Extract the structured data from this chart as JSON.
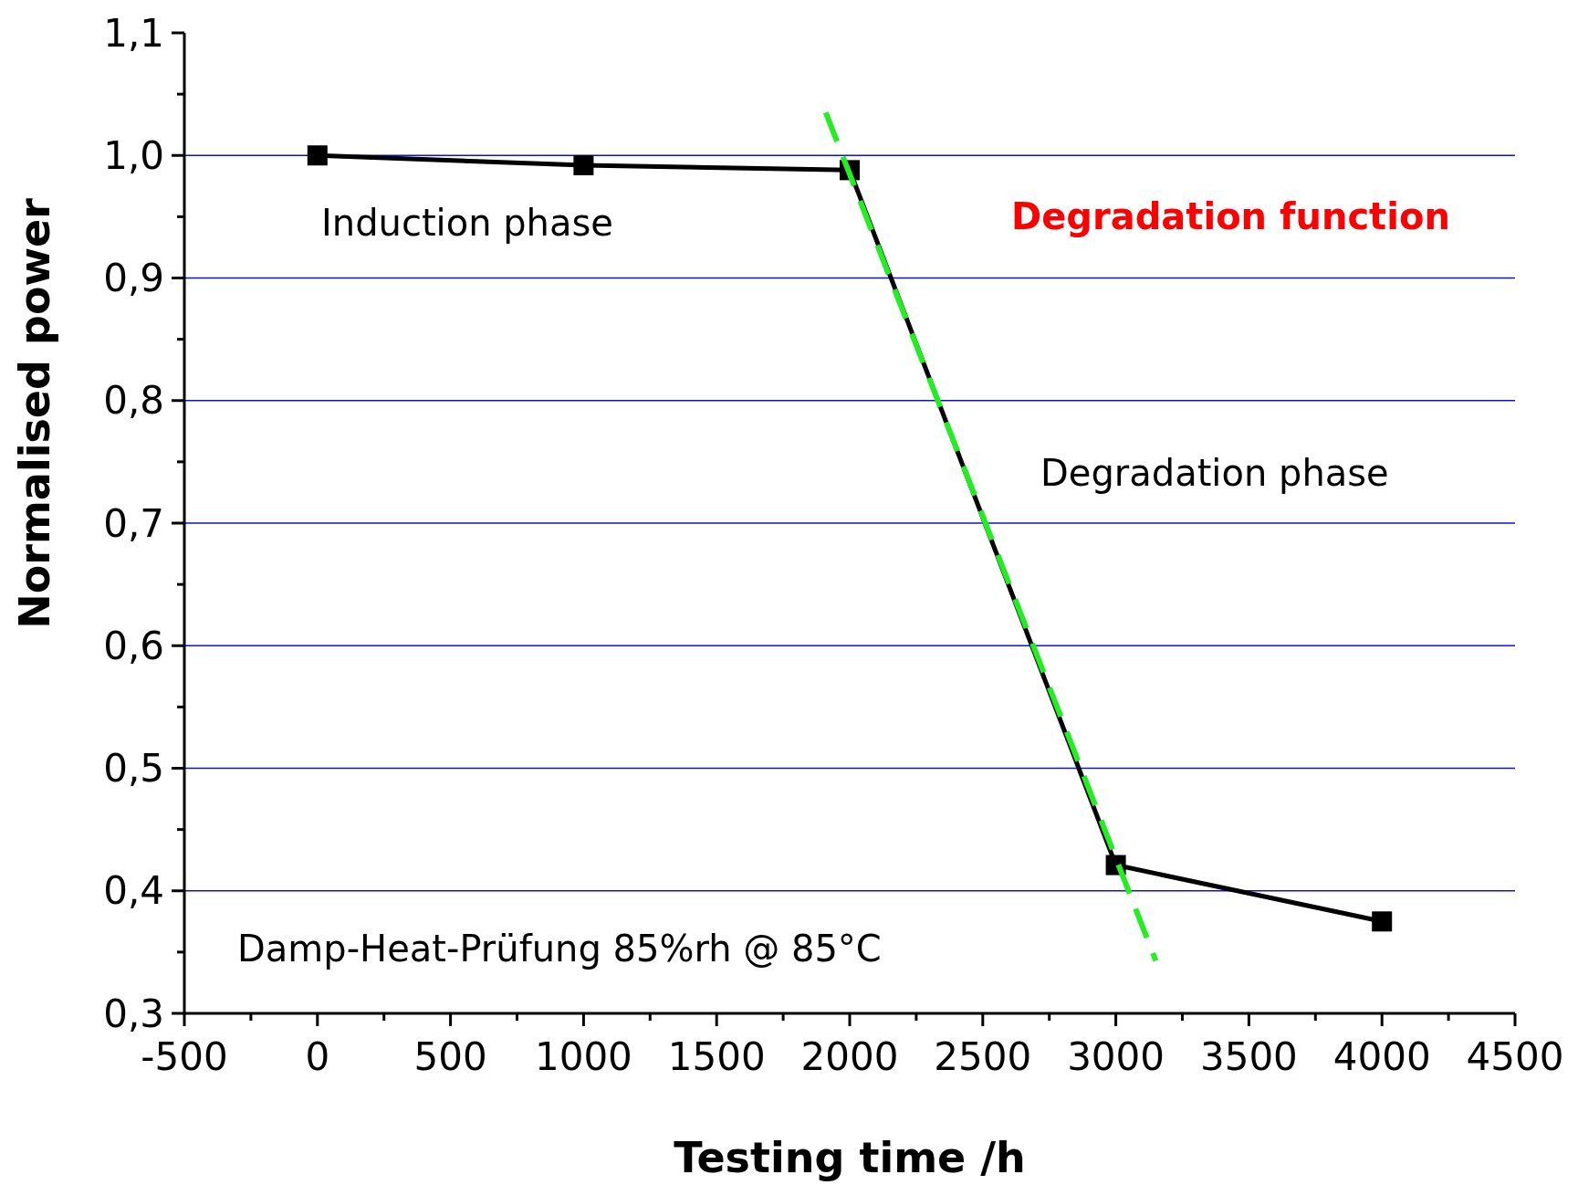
{
  "chart_data": {
    "type": "line",
    "xlabel": "Testing time /h",
    "ylabel": "Normalised power",
    "x": [
      0,
      1000,
      2000,
      3000,
      4000
    ],
    "series": [
      {
        "color": "#000000",
        "values": [
          1.0,
          0.992,
          0.988,
          0.421,
          0.375
        ],
        "marker": "square",
        "line_style": "solid"
      },
      {
        "type": "line",
        "color": "#22ee22",
        "x": [
          1910,
          3150
        ],
        "values": [
          1.035,
          0.343
        ],
        "marker": "none",
        "line_style": "dashed"
      }
    ],
    "xlim": [
      -500,
      4500
    ],
    "xticks": [
      -500,
      {
        "value": -250,
        "label": null
      },
      0,
      {
        "value": 250,
        "label": null
      },
      500,
      {
        "value": 750,
        "label": null
      },
      1000,
      {
        "value": 1250,
        "label": null
      },
      1500,
      {
        "value": 1750,
        "label": null
      },
      2000,
      {
        "value": 2250,
        "label": null
      },
      2500,
      {
        "value": 2750,
        "label": null
      },
      3000,
      {
        "value": 3250,
        "label": null
      },
      3500,
      {
        "value": 3750,
        "label": null
      },
      4000,
      {
        "value": 4250,
        "label": null
      },
      4500
    ],
    "ylim": [
      0.3,
      1.1
    ],
    "yticks": [
      {
        "value": 0.3,
        "label": "0,3"
      },
      {
        "value": 0.35,
        "label": null
      },
      {
        "value": 0.4,
        "label": "0,4"
      },
      {
        "value": 0.45,
        "label": null
      },
      {
        "value": 0.5,
        "label": "0,5"
      },
      {
        "value": 0.55,
        "label": null
      },
      {
        "value": 0.6,
        "label": "0,6"
      },
      {
        "value": 0.65,
        "label": null
      },
      {
        "value": 0.7,
        "label": "0,7"
      },
      {
        "value": 0.75,
        "label": null
      },
      {
        "value": 0.8,
        "label": "0,8"
      },
      {
        "value": 0.85,
        "label": null
      },
      {
        "value": 0.9,
        "label": "0,9"
      },
      {
        "value": 0.95,
        "label": null
      },
      {
        "value": 1.0,
        "label": "1,0"
      },
      {
        "value": 1.05,
        "label": null
      },
      {
        "value": 1.1,
        "label": "1,1"
      }
    ],
    "grid": "y",
    "annotations": [
      "Induction phase",
      "Degradation function",
      "Degradation phase",
      "Damp-Heat-Prüfung 85%rh @ 85°C"
    ]
  }
}
